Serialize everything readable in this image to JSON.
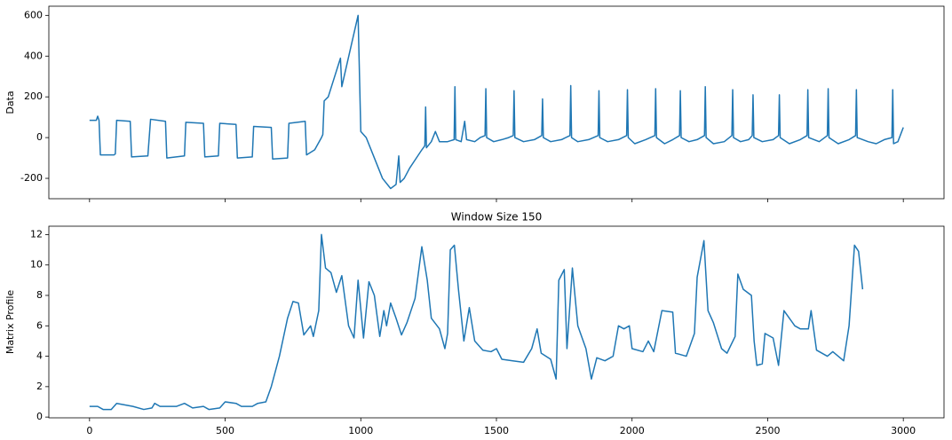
{
  "chart_data": [
    {
      "type": "line",
      "ylabel": "Data",
      "color": "#1f77b4",
      "show_xticklabels": false,
      "xlim": [
        -150,
        3150
      ],
      "ylim": [
        -300,
        645
      ],
      "xticks": [
        0,
        500,
        1000,
        1500,
        2000,
        2500,
        3000
      ],
      "yticks": [
        -200,
        0,
        200,
        400,
        600
      ],
      "x": [
        0,
        25,
        30,
        35,
        40,
        90,
        95,
        100,
        150,
        155,
        215,
        225,
        280,
        285,
        350,
        355,
        420,
        425,
        475,
        480,
        540,
        545,
        600,
        605,
        670,
        675,
        730,
        735,
        795,
        800,
        830,
        855,
        860,
        865,
        880,
        925,
        930,
        990,
        1000,
        1020,
        1050,
        1080,
        1110,
        1130,
        1140,
        1145,
        1160,
        1180,
        1200,
        1225,
        1236,
        1239,
        1242,
        1260,
        1275,
        1290,
        1320,
        1344,
        1347,
        1350,
        1370,
        1383,
        1390,
        1420,
        1440,
        1458,
        1461,
        1464,
        1490,
        1520,
        1545,
        1562,
        1565,
        1568,
        1600,
        1640,
        1667,
        1670,
        1673,
        1700,
        1740,
        1771,
        1774,
        1777,
        1800,
        1840,
        1875,
        1878,
        1881,
        1910,
        1950,
        1980,
        1983,
        1986,
        2010,
        2050,
        2084,
        2087,
        2090,
        2120,
        2150,
        2175,
        2178,
        2181,
        2210,
        2240,
        2267,
        2270,
        2273,
        2300,
        2340,
        2368,
        2371,
        2374,
        2400,
        2430,
        2443,
        2446,
        2449,
        2480,
        2520,
        2540,
        2543,
        2546,
        2580,
        2620,
        2645,
        2648,
        2651,
        2690,
        2720,
        2723,
        2726,
        2760,
        2800,
        2824,
        2827,
        2830,
        2870,
        2900,
        2930,
        2958,
        2961,
        2964,
        2980,
        3000
      ],
      "values": [
        85,
        85,
        105,
        85,
        -85,
        -85,
        -80,
        85,
        80,
        -95,
        -90,
        90,
        80,
        -100,
        -90,
        75,
        70,
        -95,
        -90,
        70,
        65,
        -100,
        -95,
        55,
        50,
        -105,
        -100,
        70,
        80,
        -85,
        -60,
        0,
        15,
        180,
        200,
        390,
        250,
        600,
        30,
        0,
        -100,
        -200,
        -250,
        -230,
        -90,
        -220,
        -200,
        -150,
        -110,
        -60,
        -40,
        150,
        -50,
        -20,
        30,
        -20,
        -20,
        -10,
        250,
        -10,
        -20,
        80,
        -10,
        -20,
        0,
        10,
        240,
        0,
        -20,
        -10,
        0,
        10,
        230,
        0,
        -20,
        -10,
        10,
        190,
        0,
        -20,
        -10,
        10,
        255,
        0,
        -20,
        -10,
        10,
        230,
        0,
        -20,
        -10,
        10,
        235,
        0,
        -30,
        -10,
        10,
        240,
        0,
        -30,
        -10,
        10,
        230,
        0,
        -20,
        -10,
        10,
        250,
        0,
        -30,
        -20,
        10,
        235,
        0,
        -20,
        -10,
        10,
        210,
        0,
        -20,
        -10,
        10,
        210,
        0,
        -30,
        -10,
        10,
        235,
        0,
        -20,
        10,
        240,
        0,
        -30,
        -10,
        10,
        235,
        0,
        -20,
        -30,
        -10,
        0,
        235,
        -30,
        -20,
        50
      ]
    },
    {
      "type": "line",
      "title": "Window Size 150",
      "ylabel": "Matrix Profile",
      "color": "#1f77b4",
      "show_xticklabels": true,
      "xlim": [
        -150,
        3150
      ],
      "ylim": [
        -0.05,
        12.55
      ],
      "xticks": [
        0,
        500,
        1000,
        1500,
        2000,
        2500,
        3000
      ],
      "yticks": [
        0,
        2,
        4,
        6,
        8,
        10,
        12
      ],
      "x": [
        0,
        30,
        50,
        80,
        100,
        160,
        200,
        230,
        240,
        260,
        320,
        350,
        380,
        420,
        440,
        480,
        500,
        540,
        560,
        600,
        620,
        650,
        670,
        700,
        730,
        750,
        770,
        790,
        815,
        825,
        845,
        855,
        870,
        890,
        910,
        930,
        955,
        975,
        990,
        1010,
        1030,
        1050,
        1070,
        1085,
        1095,
        1110,
        1130,
        1150,
        1170,
        1200,
        1225,
        1245,
        1260,
        1290,
        1310,
        1320,
        1330,
        1345,
        1360,
        1380,
        1400,
        1420,
        1450,
        1480,
        1500,
        1520,
        1560,
        1600,
        1630,
        1650,
        1665,
        1700,
        1720,
        1730,
        1750,
        1760,
        1780,
        1800,
        1830,
        1850,
        1870,
        1900,
        1930,
        1950,
        1970,
        1990,
        2000,
        2040,
        2060,
        2080,
        2110,
        2150,
        2160,
        2200,
        2230,
        2240,
        2265,
        2280,
        2300,
        2330,
        2350,
        2380,
        2390,
        2410,
        2440,
        2450,
        2460,
        2480,
        2490,
        2520,
        2540,
        2560,
        2600,
        2620,
        2650,
        2660,
        2680,
        2720,
        2740,
        2760,
        2780,
        2800,
        2820,
        2835,
        2850
      ],
      "values": [
        0.7,
        0.7,
        0.5,
        0.5,
        0.9,
        0.7,
        0.5,
        0.6,
        0.9,
        0.7,
        0.7,
        0.9,
        0.6,
        0.7,
        0.5,
        0.6,
        1.0,
        0.9,
        0.7,
        0.7,
        0.9,
        1.0,
        2.0,
        4.0,
        6.5,
        7.6,
        7.5,
        5.4,
        6.0,
        5.3,
        7.0,
        12.0,
        9.8,
        9.5,
        8.2,
        9.3,
        6.0,
        5.2,
        9.0,
        5.2,
        8.9,
        8.0,
        5.3,
        7.0,
        6.0,
        7.5,
        6.5,
        5.4,
        6.2,
        7.8,
        11.2,
        9.0,
        6.5,
        5.8,
        4.5,
        5.5,
        11.0,
        11.3,
        8.4,
        5.0,
        7.2,
        5.0,
        4.4,
        4.3,
        4.5,
        3.8,
        3.7,
        3.6,
        4.5,
        5.8,
        4.2,
        3.8,
        2.5,
        9.0,
        9.7,
        4.5,
        9.8,
        6.0,
        4.5,
        2.5,
        3.9,
        3.7,
        4.0,
        6.0,
        5.8,
        6.0,
        4.5,
        4.3,
        5.0,
        4.3,
        7.0,
        6.9,
        4.2,
        4.0,
        5.5,
        9.2,
        11.6,
        7.0,
        6.2,
        4.5,
        4.2,
        5.3,
        9.4,
        8.4,
        8.0,
        5.0,
        3.4,
        3.5,
        5.5,
        5.2,
        3.4,
        7.0,
        6.0,
        5.8,
        5.8,
        7.0,
        4.4,
        4.0,
        4.3,
        4.0,
        3.7,
        6.0,
        11.3,
        10.9,
        8.4
      ]
    }
  ]
}
